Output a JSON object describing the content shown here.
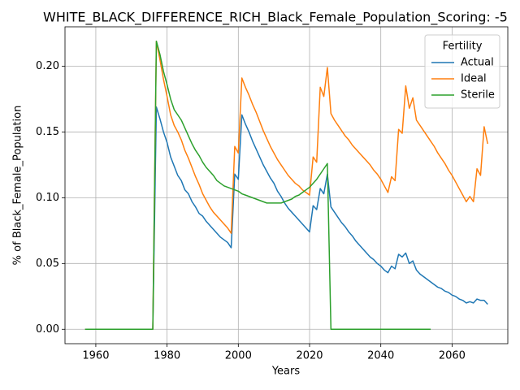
{
  "chart_data": {
    "type": "line",
    "title": "WHITE_BLACK_DIFFERENCE_RICH_Black_Female_Population_Scoring: -5",
    "xlabel": "Years",
    "ylabel": "% of Black_Female_Population",
    "legend_title": "Fertility",
    "legend": "upper right",
    "grid": true,
    "xlim": [
      1951.35,
      2075.65
    ],
    "xticks": [
      1960,
      1980,
      2000,
      2020,
      2040,
      2060
    ],
    "ylim": [
      -0.01095,
      0.22995
    ],
    "yticks": [
      {
        "value": 0,
        "label": "0.00"
      },
      {
        "value": 0.05,
        "label": "0.05"
      },
      {
        "value": 0.1,
        "label": "0.10"
      },
      {
        "value": 0.15,
        "label": "0.15"
      },
      {
        "value": 0.2,
        "label": "0.20"
      }
    ],
    "x": [
      1957,
      1958,
      1959,
      1960,
      1961,
      1962,
      1963,
      1964,
      1965,
      1966,
      1967,
      1968,
      1969,
      1970,
      1971,
      1972,
      1973,
      1974,
      1975,
      1976,
      1977,
      1978,
      1979,
      1980,
      1981,
      1982,
      1983,
      1984,
      1985,
      1986,
      1987,
      1988,
      1989,
      1990,
      1991,
      1992,
      1993,
      1994,
      1995,
      1996,
      1997,
      1998,
      1999,
      2000,
      2001,
      2002,
      2003,
      2004,
      2005,
      2006,
      2007,
      2008,
      2009,
      2010,
      2011,
      2012,
      2013,
      2014,
      2015,
      2016,
      2017,
      2018,
      2019,
      2020,
      2021,
      2022,
      2023,
      2024,
      2025,
      2026,
      2027,
      2028,
      2029,
      2030,
      2031,
      2032,
      2033,
      2034,
      2035,
      2036,
      2037,
      2038,
      2039,
      2040,
      2041,
      2042,
      2043,
      2044,
      2045,
      2046,
      2047,
      2048,
      2049,
      2050,
      2051,
      2052,
      2053,
      2054,
      2055,
      2056,
      2057,
      2058,
      2059,
      2060,
      2061,
      2062,
      2063,
      2064,
      2065,
      2066,
      2067,
      2068,
      2069,
      2070
    ],
    "series": [
      {
        "name": "Actual",
        "color": "#1f77b4",
        "values": [
          0,
          0,
          0,
          0,
          0,
          0,
          0,
          0,
          0,
          0,
          0,
          0,
          0,
          0,
          0,
          0,
          0,
          0,
          0,
          0,
          0.169,
          0.16,
          0.15,
          0.142,
          0.131,
          0.124,
          0.117,
          0.113,
          0.106,
          0.103,
          0.097,
          0.093,
          0.088,
          0.086,
          0.082,
          0.079,
          0.076,
          0.073,
          0.07,
          0.068,
          0.066,
          0.062,
          0.118,
          0.114,
          0.163,
          0.156,
          0.15,
          0.143,
          0.137,
          0.131,
          0.125,
          0.12,
          0.115,
          0.111,
          0.105,
          0.101,
          0.096,
          0.092,
          0.089,
          0.086,
          0.083,
          0.08,
          0.077,
          0.074,
          0.094,
          0.091,
          0.107,
          0.103,
          0.118,
          0.093,
          0.089,
          0.085,
          0.081,
          0.078,
          0.074,
          0.071,
          0.067,
          0.064,
          0.061,
          0.058,
          0.055,
          0.053,
          0.05,
          0.048,
          0.045,
          0.043,
          0.048,
          0.046,
          0.057,
          0.055,
          0.058,
          0.05,
          0.052,
          0.045,
          0.042,
          0.04,
          0.038,
          0.036,
          0.034,
          0.032,
          0.031,
          0.029,
          0.028,
          0.026,
          0.025,
          0.023,
          0.022,
          0.02,
          0.021,
          0.02,
          0.023,
          0.022,
          0.022,
          0.019
        ]
      },
      {
        "name": "Ideal",
        "color": "#ff7f0e",
        "values": [
          0,
          0,
          0,
          0,
          0,
          0,
          0,
          0,
          0,
          0,
          0,
          0,
          0,
          0,
          0,
          0,
          0,
          0,
          0,
          0,
          0.219,
          0.205,
          0.19,
          0.177,
          0.163,
          0.155,
          0.15,
          0.144,
          0.136,
          0.13,
          0.123,
          0.116,
          0.11,
          0.103,
          0.098,
          0.093,
          0.089,
          0.086,
          0.083,
          0.08,
          0.077,
          0.073,
          0.139,
          0.134,
          0.191,
          0.184,
          0.178,
          0.171,
          0.165,
          0.158,
          0.151,
          0.145,
          0.139,
          0.134,
          0.129,
          0.125,
          0.121,
          0.117,
          0.114,
          0.111,
          0.109,
          0.106,
          0.104,
          0.102,
          0.131,
          0.127,
          0.184,
          0.177,
          0.199,
          0.164,
          0.159,
          0.155,
          0.151,
          0.147,
          0.144,
          0.14,
          0.137,
          0.134,
          0.131,
          0.128,
          0.125,
          0.121,
          0.118,
          0.114,
          0.109,
          0.104,
          0.116,
          0.113,
          0.152,
          0.149,
          0.185,
          0.168,
          0.176,
          0.159,
          0.155,
          0.151,
          0.147,
          0.143,
          0.139,
          0.134,
          0.13,
          0.126,
          0.121,
          0.117,
          0.112,
          0.107,
          0.102,
          0.097,
          0.101,
          0.097,
          0.122,
          0.117,
          0.154,
          0.141
        ]
      },
      {
        "name": "Sterile",
        "color": "#2ca02c",
        "values": [
          0,
          0,
          0,
          0,
          0,
          0,
          0,
          0,
          0,
          0,
          0,
          0,
          0,
          0,
          0,
          0,
          0,
          0,
          0,
          0,
          0.219,
          0.209,
          0.196,
          0.186,
          0.175,
          0.167,
          0.163,
          0.159,
          0.153,
          0.147,
          0.141,
          0.136,
          0.132,
          0.127,
          0.123,
          0.12,
          0.117,
          0.113,
          0.111,
          0.109,
          0.108,
          0.107,
          0.106,
          0.105,
          0.103,
          0.102,
          0.101,
          0.1,
          0.099,
          0.098,
          0.097,
          0.096,
          0.096,
          0.096,
          0.096,
          0.096,
          0.097,
          0.098,
          0.099,
          0.101,
          0.102,
          0.104,
          0.106,
          0.108,
          0.111,
          0.114,
          0.118,
          0.122,
          0.126,
          0,
          0,
          0,
          0,
          0,
          0,
          0,
          0,
          0,
          0,
          0,
          0,
          0,
          0,
          0,
          0,
          0,
          0,
          0,
          0,
          0,
          0,
          0,
          0,
          0,
          0,
          0,
          0,
          0,
          null,
          null,
          null,
          null,
          null,
          null,
          null,
          null,
          null,
          null,
          null,
          null,
          null,
          null,
          null,
          null
        ]
      }
    ]
  }
}
